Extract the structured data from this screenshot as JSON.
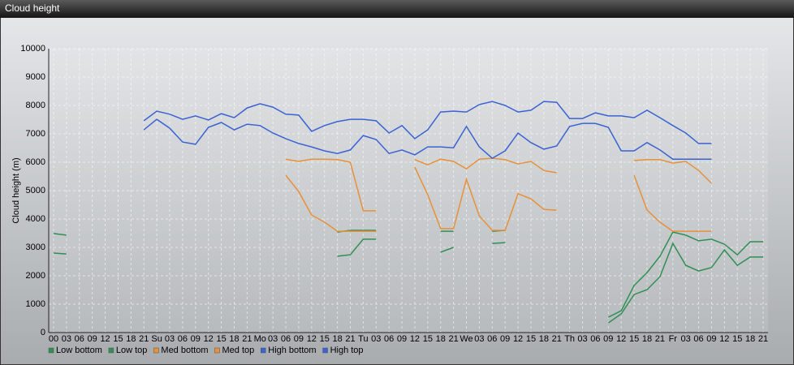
{
  "window_title": "Cloud height",
  "chart_data": {
    "type": "line",
    "y_label": "Cloud height (m)",
    "categories": [
      "00",
      "03",
      "06",
      "09",
      "12",
      "15",
      "18",
      "21",
      "Su",
      "03",
      "06",
      "09",
      "12",
      "15",
      "18",
      "21",
      "Mo",
      "03",
      "06",
      "09",
      "12",
      "15",
      "18",
      "21",
      "Tu",
      "03",
      "06",
      "09",
      "12",
      "15",
      "18",
      "21",
      "We",
      "03",
      "06",
      "09",
      "12",
      "15",
      "18",
      "21",
      "Th",
      "03",
      "06",
      "09",
      "12",
      "15",
      "18",
      "21",
      "Fr",
      "03",
      "06",
      "09",
      "12",
      "15",
      "18",
      "21"
    ],
    "ylim": [
      0,
      10000
    ],
    "yticks": [
      0,
      1000,
      2000,
      3000,
      4000,
      5000,
      6000,
      7000,
      8000,
      9000,
      10000
    ],
    "grid": true,
    "series": [
      {
        "name": "Low bottom",
        "color": "#2f8f55",
        "values": [
          2800,
          2770,
          null,
          null,
          null,
          null,
          null,
          null,
          null,
          null,
          null,
          null,
          null,
          null,
          null,
          null,
          null,
          null,
          null,
          null,
          null,
          null,
          2690,
          2740,
          3290,
          3290,
          null,
          null,
          null,
          null,
          2830,
          3000,
          null,
          null,
          3140,
          3170,
          null,
          null,
          null,
          null,
          null,
          null,
          null,
          340,
          660,
          1340,
          1510,
          1970,
          3140,
          2370,
          2170,
          2290,
          2910,
          2370,
          2660,
          2660
        ]
      },
      {
        "name": "Low top",
        "color": "#2f8f55",
        "values": [
          3490,
          3430,
          null,
          null,
          null,
          null,
          null,
          null,
          null,
          null,
          null,
          null,
          null,
          null,
          null,
          null,
          null,
          null,
          null,
          null,
          null,
          null,
          3540,
          3600,
          3600,
          3600,
          null,
          null,
          null,
          null,
          3570,
          3570,
          null,
          null,
          3570,
          3600,
          null,
          null,
          null,
          null,
          null,
          null,
          null,
          540,
          770,
          1660,
          2110,
          2690,
          3540,
          3430,
          3230,
          3290,
          3110,
          2740,
          3200,
          3200
        ]
      },
      {
        "name": "Med bottom",
        "color": "#e8903a",
        "values": [
          null,
          null,
          null,
          null,
          null,
          null,
          null,
          null,
          null,
          null,
          null,
          null,
          null,
          null,
          null,
          null,
          null,
          null,
          5540,
          4970,
          4140,
          3890,
          3570,
          3570,
          3570,
          3570,
          null,
          null,
          5830,
          4860,
          3660,
          3660,
          5400,
          4110,
          3600,
          3600,
          4890,
          4710,
          4340,
          4310,
          null,
          null,
          null,
          null,
          null,
          5540,
          4310,
          3890,
          3570,
          3570,
          3570,
          3570,
          null,
          null,
          null,
          null
        ]
      },
      {
        "name": "Med top",
        "color": "#e8903a",
        "values": [
          null,
          null,
          null,
          null,
          null,
          null,
          null,
          null,
          null,
          null,
          null,
          null,
          null,
          null,
          null,
          null,
          null,
          null,
          6110,
          6030,
          6110,
          6110,
          6090,
          6000,
          4290,
          4290,
          null,
          null,
          6090,
          5910,
          6110,
          6030,
          5770,
          6110,
          6140,
          6090,
          5940,
          6030,
          5710,
          5630,
          null,
          null,
          null,
          null,
          null,
          6060,
          6090,
          6090,
          5970,
          6030,
          5710,
          5260,
          null,
          null,
          null,
          null
        ]
      },
      {
        "name": "High bottom",
        "color": "#3b62d4",
        "values": [
          null,
          null,
          null,
          null,
          null,
          null,
          null,
          7140,
          7510,
          7200,
          6710,
          6630,
          7230,
          7400,
          7140,
          7340,
          7290,
          7030,
          6830,
          6660,
          6540,
          6400,
          6310,
          6430,
          6940,
          6800,
          6310,
          6430,
          6260,
          6540,
          6540,
          6510,
          7260,
          6540,
          6140,
          6400,
          7030,
          6690,
          6460,
          6570,
          7260,
          7370,
          7370,
          7230,
          6400,
          6400,
          6690,
          6430,
          6110,
          6110,
          6110,
          6110,
          null,
          null,
          null,
          null
        ]
      },
      {
        "name": "High top",
        "color": "#3b62d4",
        "values": [
          null,
          null,
          null,
          null,
          null,
          null,
          null,
          7460,
          7800,
          7690,
          7510,
          7630,
          7490,
          7710,
          7570,
          7910,
          8060,
          7940,
          7690,
          7660,
          7090,
          7290,
          7430,
          7510,
          7510,
          7460,
          7030,
          7290,
          6830,
          7140,
          7770,
          7800,
          7770,
          8030,
          8140,
          8000,
          7770,
          7830,
          8140,
          8110,
          7540,
          7540,
          7740,
          7630,
          7630,
          7570,
          7830,
          7570,
          7290,
          7030,
          6660,
          6660,
          null,
          null,
          null,
          null
        ]
      }
    ]
  }
}
